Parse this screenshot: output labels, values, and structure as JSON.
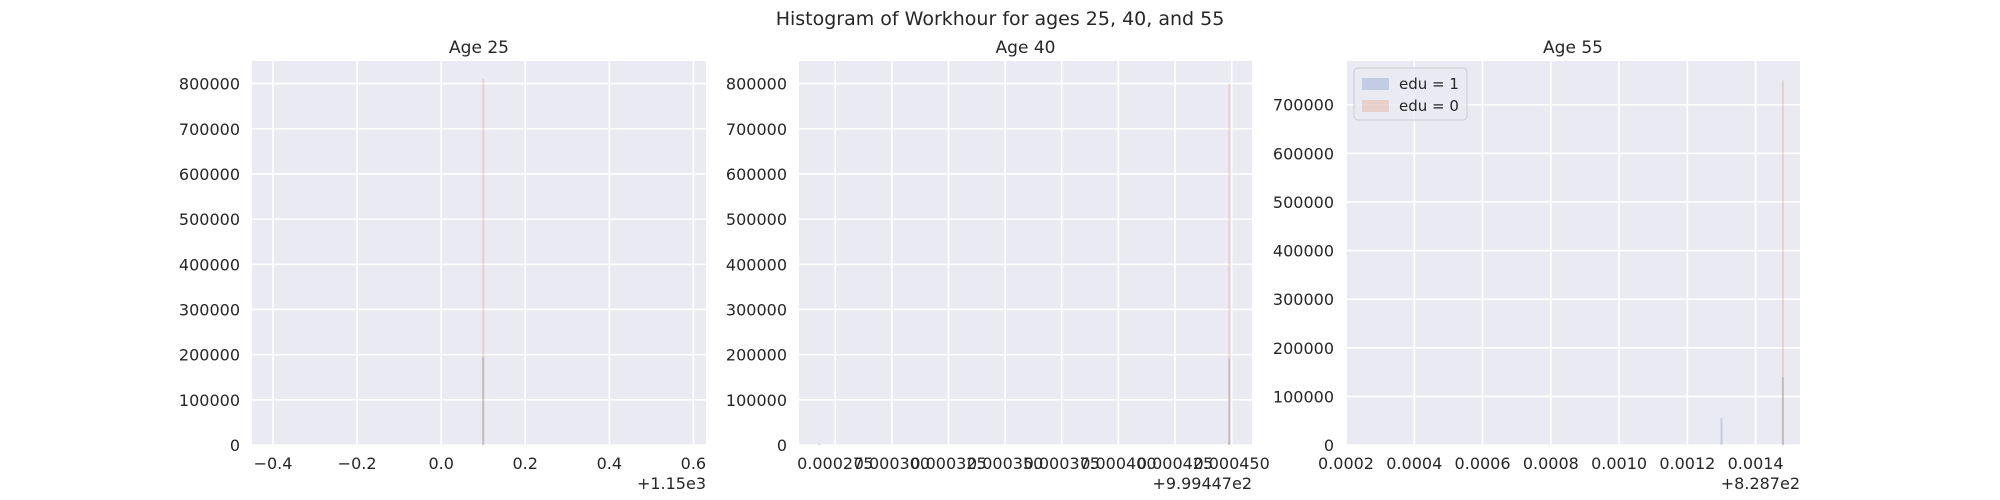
{
  "figure": {
    "suptitle": "Histogram of Workhour for ages 25, 40, and 55",
    "background": "#ffffff",
    "axes_facecolor": "#eaeaf2",
    "grid_color": "#ffffff"
  },
  "legend_colors": {
    "edu = 1": "#4c72b0",
    "edu = 0": "#dd8452"
  },
  "chart_data": [
    {
      "type": "histogram",
      "title": "Age 25",
      "xlabel": "",
      "ylabel": "",
      "x_offset_label": "+1.15e3",
      "xlim": [
        -0.45,
        0.63
      ],
      "ylim": [
        0,
        850000
      ],
      "xticks": [
        -0.4,
        -0.2,
        0.0,
        0.2,
        0.4,
        0.6
      ],
      "xtick_labels": [
        "−0.4",
        "−0.2",
        "0.0",
        "0.2",
        "0.4",
        "0.6"
      ],
      "yticks": [
        0,
        100000,
        200000,
        300000,
        400000,
        500000,
        600000,
        700000,
        800000
      ],
      "ytick_labels": [
        "0",
        "100000",
        "200000",
        "300000",
        "400000",
        "500000",
        "600000",
        "700000",
        "800000"
      ],
      "grid": true,
      "series": [
        {
          "name": "edu = 1",
          "color": "#4c72b0",
          "bars": [
            {
              "x": 0.1,
              "value": 195000
            }
          ]
        },
        {
          "name": "edu = 0",
          "color": "#dd8452",
          "bars": [
            {
              "x": 0.1,
              "value": 810000
            }
          ]
        }
      ]
    },
    {
      "type": "histogram",
      "title": "Age 40",
      "xlabel": "",
      "ylabel": "",
      "x_offset_label": "+9.99447e2",
      "xlim": [
        0.000259,
        0.000459
      ],
      "ylim": [
        0,
        850000
      ],
      "xticks": [
        0.000275,
        0.0003,
        0.000325,
        0.00035,
        0.000375,
        0.0004,
        0.000425,
        0.00045
      ],
      "xtick_labels": [
        "0.000275",
        "0.000300",
        "0.000325",
        "0.000350",
        "0.000375",
        "0.000400",
        "0.000425",
        "0.000450"
      ],
      "yticks": [
        0,
        100000,
        200000,
        300000,
        400000,
        500000,
        600000,
        700000,
        800000
      ],
      "ytick_labels": [
        "0",
        "100000",
        "200000",
        "300000",
        "400000",
        "500000",
        "600000",
        "700000",
        "800000"
      ],
      "grid": true,
      "series": [
        {
          "name": "edu = 1",
          "color": "#4c72b0",
          "bars": [
            {
              "x": 0.000268,
              "value": 3000
            },
            {
              "x": 0.000449,
              "value": 190000
            }
          ]
        },
        {
          "name": "edu = 0",
          "color": "#dd8452",
          "bars": [
            {
              "x": 0.000449,
              "value": 800000
            }
          ]
        }
      ]
    },
    {
      "type": "histogram",
      "title": "Age 55",
      "xlabel": "",
      "ylabel": "",
      "x_offset_label": "+8.287e2",
      "xlim": [
        0.0002,
        0.00153
      ],
      "ylim": [
        0,
        790000
      ],
      "xticks": [
        0.0002,
        0.0004,
        0.0006,
        0.0008,
        0.001,
        0.0012,
        0.0014
      ],
      "xtick_labels": [
        "0.0002",
        "0.0004",
        "0.0006",
        "0.0008",
        "0.0010",
        "0.0012",
        "0.0014"
      ],
      "yticks": [
        0,
        100000,
        200000,
        300000,
        400000,
        500000,
        600000,
        700000
      ],
      "ytick_labels": [
        "0",
        "100000",
        "200000",
        "300000",
        "400000",
        "500000",
        "600000",
        "700000"
      ],
      "grid": true,
      "legend": {
        "placement": "upper-left",
        "entries": [
          "edu = 1",
          "edu = 0"
        ]
      },
      "series": [
        {
          "name": "edu = 1",
          "color": "#4c72b0",
          "bars": [
            {
              "x": 0.0013,
              "value": 55000
            },
            {
              "x": 0.00148,
              "value": 140000
            }
          ]
        },
        {
          "name": "edu = 0",
          "color": "#dd8452",
          "bars": [
            {
              "x": 0.00148,
              "value": 750000
            }
          ]
        }
      ]
    }
  ]
}
